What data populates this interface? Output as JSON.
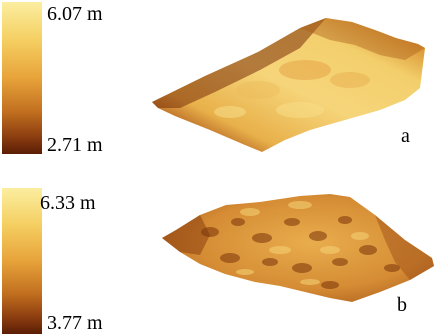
{
  "panel_a": {
    "colorbar_max": "6.07 m",
    "colorbar_min": "2.71 m",
    "label": "a"
  },
  "panel_b": {
    "colorbar_max": "6.33 m",
    "colorbar_min": "3.77 m",
    "label": "b"
  },
  "colors": {
    "high": "#fbeea0",
    "mid": "#e7a33a",
    "low": "#5b1d05"
  }
}
